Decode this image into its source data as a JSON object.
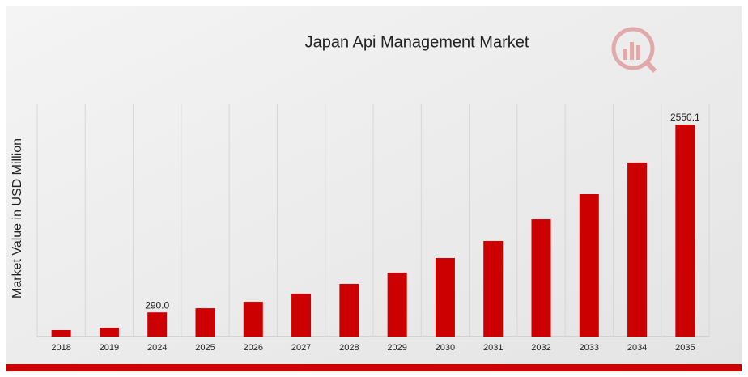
{
  "chart_data": {
    "type": "bar",
    "title": "Japan Api Management Market",
    "y_label": "Market Value in USD Million",
    "categories": [
      "2018",
      "2019",
      "2024",
      "2025",
      "2026",
      "2027",
      "2028",
      "2029",
      "2030",
      "2031",
      "2032",
      "2033",
      "2034",
      "2035"
    ],
    "values": [
      78,
      107,
      290,
      340,
      418,
      516,
      633,
      769,
      944,
      1149,
      1411,
      1713,
      2093,
      2550.1
    ],
    "value_labels": [
      null,
      null,
      "290.0",
      null,
      null,
      null,
      null,
      null,
      null,
      null,
      null,
      null,
      null,
      "2550.1"
    ],
    "color": "#cc0000",
    "grid": true
  }
}
